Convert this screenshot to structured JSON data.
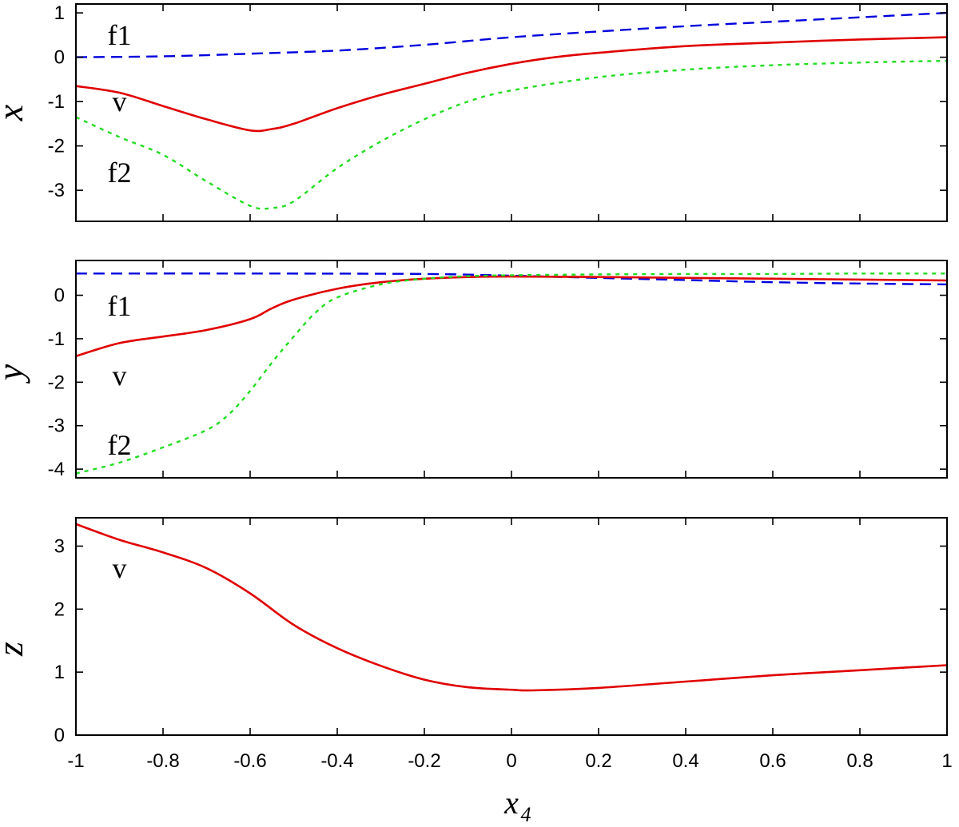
{
  "chart_data": [
    {
      "type": "line",
      "ylabel": "x",
      "xlim": [
        -1,
        1
      ],
      "ylim": [
        -3.7,
        1.2
      ],
      "yticks": [
        -3,
        -2,
        -1,
        0,
        1
      ],
      "series": [
        {
          "name": "f1",
          "color": "#0000dd",
          "dash": "dashed",
          "x": [
            -1,
            -0.8,
            -0.6,
            -0.4,
            -0.2,
            0,
            0.2,
            0.4,
            0.6,
            0.8,
            1
          ],
          "y": [
            0.0,
            0.02,
            0.08,
            0.15,
            0.28,
            0.45,
            0.58,
            0.7,
            0.8,
            0.9,
            1.0
          ]
        },
        {
          "name": "v",
          "color": "#e00000",
          "dash": "solid",
          "x": [
            -1,
            -0.9,
            -0.8,
            -0.7,
            -0.6,
            -0.55,
            -0.5,
            -0.4,
            -0.3,
            -0.2,
            -0.1,
            0,
            0.1,
            0.2,
            0.4,
            0.6,
            0.8,
            1
          ],
          "y": [
            -0.65,
            -0.8,
            -1.1,
            -1.4,
            -1.65,
            -1.62,
            -1.5,
            -1.15,
            -0.85,
            -0.6,
            -0.35,
            -0.15,
            0.0,
            0.1,
            0.25,
            0.33,
            0.4,
            0.45
          ]
        },
        {
          "name": "f2",
          "color": "#22dd22",
          "dash": "dotted",
          "x": [
            -1,
            -0.9,
            -0.8,
            -0.7,
            -0.6,
            -0.55,
            -0.5,
            -0.4,
            -0.3,
            -0.2,
            -0.1,
            0,
            0.2,
            0.4,
            0.6,
            0.8,
            1
          ],
          "y": [
            -1.35,
            -1.8,
            -2.2,
            -2.8,
            -3.35,
            -3.4,
            -3.25,
            -2.5,
            -1.9,
            -1.4,
            -1.0,
            -0.75,
            -0.45,
            -0.28,
            -0.18,
            -0.12,
            -0.08
          ]
        }
      ],
      "curve_labels": [
        {
          "text": "f1",
          "x": -0.9,
          "y": 0.5
        },
        {
          "text": "v",
          "x": -0.9,
          "y": -1.0
        },
        {
          "text": "f2",
          "x": -0.9,
          "y": -2.6
        }
      ]
    },
    {
      "type": "line",
      "ylabel": "y",
      "xlim": [
        -1,
        1
      ],
      "ylim": [
        -4.2,
        0.8
      ],
      "yticks": [
        -4,
        -3,
        -2,
        -1,
        0
      ],
      "series": [
        {
          "name": "f1",
          "color": "#0000dd",
          "dash": "dashed",
          "x": [
            -1,
            -0.6,
            -0.2,
            0,
            0.2,
            0.4,
            0.6,
            0.8,
            1
          ],
          "y": [
            0.5,
            0.5,
            0.49,
            0.45,
            0.4,
            0.35,
            0.3,
            0.27,
            0.25
          ]
        },
        {
          "name": "v",
          "color": "#e00000",
          "dash": "solid",
          "x": [
            -1,
            -0.9,
            -0.8,
            -0.7,
            -0.6,
            -0.55,
            -0.5,
            -0.4,
            -0.3,
            -0.2,
            -0.1,
            0,
            0.2,
            0.4,
            0.6,
            0.8,
            1
          ],
          "y": [
            -1.4,
            -1.1,
            -0.95,
            -0.8,
            -0.55,
            -0.3,
            -0.1,
            0.15,
            0.3,
            0.38,
            0.42,
            0.43,
            0.42,
            0.4,
            0.38,
            0.36,
            0.34
          ]
        },
        {
          "name": "f2",
          "color": "#22dd22",
          "dash": "dotted",
          "x": [
            -1,
            -0.9,
            -0.8,
            -0.7,
            -0.65,
            -0.6,
            -0.55,
            -0.5,
            -0.45,
            -0.4,
            -0.3,
            -0.2,
            -0.1,
            0,
            0.2,
            0.4,
            0.6,
            0.8,
            1
          ],
          "y": [
            -4.1,
            -3.85,
            -3.5,
            -3.1,
            -2.75,
            -2.2,
            -1.55,
            -0.95,
            -0.4,
            -0.05,
            0.25,
            0.38,
            0.44,
            0.46,
            0.48,
            0.49,
            0.49,
            0.5,
            0.5
          ]
        }
      ],
      "curve_labels": [
        {
          "text": "f1",
          "x": -0.9,
          "y": -0.25
        },
        {
          "text": "v",
          "x": -0.9,
          "y": -1.85
        },
        {
          "text": "f2",
          "x": -0.9,
          "y": -3.45
        }
      ]
    },
    {
      "type": "line",
      "ylabel": "z",
      "xlabel": "x",
      "xlabel_sub": "4",
      "xlim": [
        -1,
        1
      ],
      "ylim": [
        0,
        3.45
      ],
      "yticks": [
        0,
        1,
        2,
        3
      ],
      "xticks": [
        "-1",
        "-0.8",
        "-0.6",
        "-0.4",
        "-0.2",
        "0",
        "0.2",
        "0.4",
        "0.6",
        "0.8",
        "1"
      ],
      "series": [
        {
          "name": "v",
          "color": "#e00000",
          "dash": "solid",
          "x": [
            -1,
            -0.9,
            -0.8,
            -0.7,
            -0.6,
            -0.5,
            -0.4,
            -0.3,
            -0.2,
            -0.1,
            0,
            0.05,
            0.2,
            0.4,
            0.6,
            0.8,
            1
          ],
          "y": [
            3.35,
            3.1,
            2.9,
            2.65,
            2.25,
            1.75,
            1.38,
            1.1,
            0.88,
            0.76,
            0.72,
            0.71,
            0.75,
            0.85,
            0.95,
            1.03,
            1.11
          ]
        }
      ],
      "curve_labels": [
        {
          "text": "v",
          "x": -0.9,
          "y": 2.65
        }
      ]
    }
  ]
}
